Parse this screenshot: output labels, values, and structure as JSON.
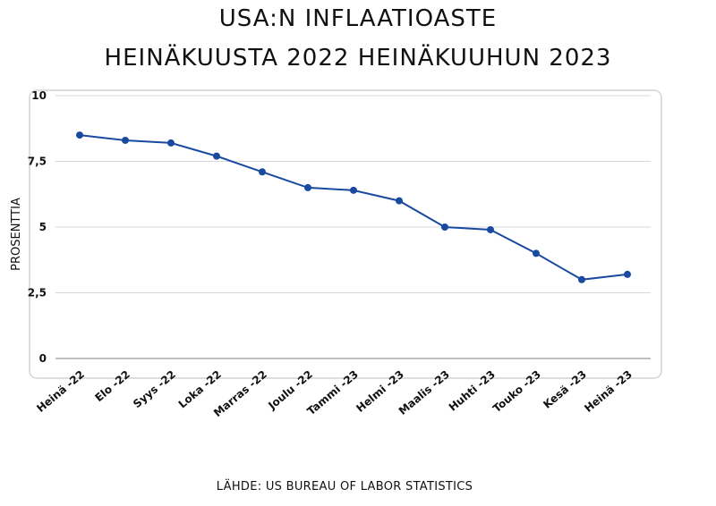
{
  "title_line1": "USA:N INFLAATIOASTE",
  "title_line2": "HEINÄKUUSTA 2022 HEINÄKUUHUN 2023",
  "source": "LÄHDE: US BUREAU OF LABOR STATISTICS",
  "chart_data": {
    "type": "line",
    "title": "USA:N INFLAATIOASTE HEINÄKUUSTA 2022 HEINÄKUUHUN 2023",
    "xlabel": "",
    "ylabel": "PROSENTTIA",
    "ylim": [
      0,
      10
    ],
    "yticks": [
      0,
      2.5,
      5,
      7.5,
      10
    ],
    "ytick_labels": [
      "0",
      "2,5",
      "5",
      "7,5",
      "10"
    ],
    "grid": true,
    "line_color": "#1a4aa0",
    "categories": [
      "Heinä -22",
      "Elo -22",
      "Syys -22",
      "Loka -22",
      "Marras -22",
      "Joulu -22",
      "Tammi -23",
      "Helmi -23",
      "Maalis -23",
      "Huhti -23",
      "Touko -23",
      "Kesä -23",
      "Heinä -23"
    ],
    "series": [
      {
        "values": [
          8.5,
          8.3,
          8.2,
          7.7,
          7.1,
          6.5,
          6.4,
          6.0,
          5.0,
          4.9,
          4.0,
          3.0,
          3.2
        ]
      }
    ]
  }
}
